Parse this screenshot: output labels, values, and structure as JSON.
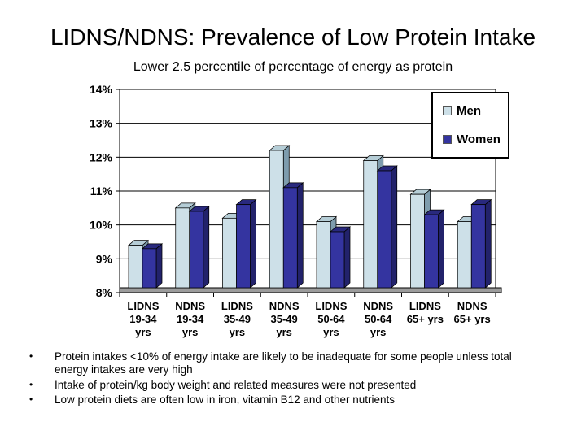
{
  "slide": {
    "title": "LIDNS/NDNS: Prevalence of Low Protein Intake",
    "subtitle": "Lower 2.5 percentile of percentage of energy as protein"
  },
  "legend": {
    "men_label": "Men",
    "women_label": "Women"
  },
  "colors": {
    "men_front": "#cde0e8",
    "men_top": "#b5cdd6",
    "men_side": "#7e9cad",
    "women_front": "#3434a0",
    "women_top": "#29297e",
    "women_side": "#22226b",
    "floor": "#9c9c9c",
    "axis": "#000000",
    "plot_bg": "#ffffff"
  },
  "bullets": [
    "Protein intakes <10% of energy intake are likely to be inadequate for some people unless total energy intakes are very high",
    "Intake of protein/kg body weight and related measures were not presented",
    "Low protein diets are often low in iron, vitamin B12 and other nutrients"
  ],
  "chart_data": {
    "type": "bar",
    "title": "",
    "xlabel": "",
    "ylabel": "",
    "categories": [
      [
        "LIDNS",
        "19-34",
        "yrs"
      ],
      [
        "NDNS",
        "19-34",
        "yrs"
      ],
      [
        "LIDNS",
        "35-49",
        "yrs"
      ],
      [
        "NDNS",
        "35-49",
        "yrs"
      ],
      [
        "LIDNS",
        "50-64",
        "yrs"
      ],
      [
        "NDNS",
        "50-64",
        "yrs"
      ],
      [
        "LIDNS",
        "65+ yrs"
      ],
      [
        "NDNS",
        "65+ yrs"
      ]
    ],
    "series": [
      {
        "name": "Men",
        "values": [
          9.4,
          10.5,
          10.2,
          12.2,
          10.1,
          11.9,
          10.9,
          10.1
        ]
      },
      {
        "name": "Women",
        "values": [
          9.3,
          10.4,
          10.6,
          11.1,
          9.8,
          11.6,
          10.3,
          10.6
        ]
      }
    ],
    "ylim": [
      8,
      14
    ],
    "ytick_labels": [
      "8%",
      "9%",
      "10%",
      "11%",
      "12%",
      "13%",
      "14%"
    ],
    "grid": true,
    "legend_position": "top-right",
    "style": "3d-column"
  }
}
